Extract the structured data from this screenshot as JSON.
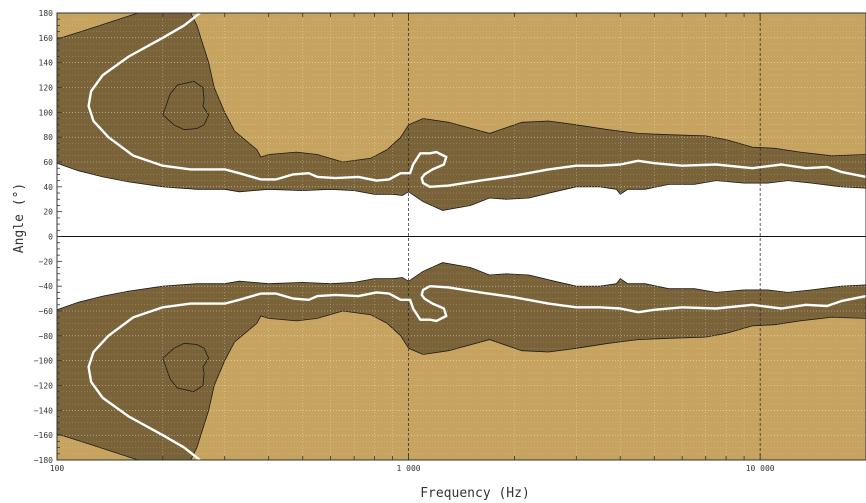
{
  "chart_data": {
    "type": "contour",
    "title": "",
    "xlabel": "Frequency (Hz)",
    "ylabel": "Angle (°)",
    "x_scale": "log",
    "xlim": [
      100,
      20000
    ],
    "ylim": [
      -180,
      180
    ],
    "x_tick_labels": [
      {
        "value": 100,
        "label": "100"
      },
      {
        "value": 1000,
        "label": "1 000"
      },
      {
        "value": 10000,
        "label": "10 000"
      }
    ],
    "y_tick_labels": [
      {
        "value": 180,
        "label": "180"
      },
      {
        "value": 160,
        "label": "160"
      },
      {
        "value": 140,
        "label": "140"
      },
      {
        "value": 120,
        "label": "120"
      },
      {
        "value": 100,
        "label": "100"
      },
      {
        "value": 80,
        "label": "80"
      },
      {
        "value": 60,
        "label": "60"
      },
      {
        "value": 40,
        "label": "40"
      },
      {
        "value": 20,
        "label": "20"
      },
      {
        "value": 0,
        "label": "0"
      },
      {
        "value": -20,
        "label": "−20"
      },
      {
        "value": -40,
        "label": "−40"
      },
      {
        "value": -60,
        "label": "−60"
      },
      {
        "value": -80,
        "label": "−80"
      },
      {
        "value": -100,
        "label": "−100"
      },
      {
        "value": -120,
        "label": "−120"
      },
      {
        "value": -140,
        "label": "−140"
      },
      {
        "value": -160,
        "label": "−160"
      },
      {
        "value": -180,
        "label": "−180"
      }
    ],
    "grid": true,
    "colors": {
      "light_band": "#c6a35e",
      "dark_band": "#7a6339",
      "white_contour": "#ffffff",
      "background": "#ffffff"
    },
    "regions": {
      "light_upper_boundary": [
        [
          100,
          59
        ],
        [
          115,
          53
        ],
        [
          135,
          48
        ],
        [
          160,
          44
        ],
        [
          200,
          40
        ],
        [
          250,
          38
        ],
        [
          300,
          38
        ],
        [
          330,
          36
        ],
        [
          400,
          38
        ],
        [
          500,
          37
        ],
        [
          600,
          38
        ],
        [
          700,
          37
        ],
        [
          800,
          34
        ],
        [
          900,
          34
        ],
        [
          960,
          33
        ],
        [
          1000,
          36
        ],
        [
          1100,
          28
        ],
        [
          1250,
          21
        ],
        [
          1500,
          25
        ],
        [
          1700,
          31
        ],
        [
          1900,
          30
        ],
        [
          2200,
          31
        ],
        [
          2600,
          36
        ],
        [
          3000,
          40
        ],
        [
          3500,
          40
        ],
        [
          3900,
          38
        ],
        [
          4000,
          34
        ],
        [
          4200,
          38
        ],
        [
          4700,
          38
        ],
        [
          5500,
          42
        ],
        [
          6500,
          42
        ],
        [
          7500,
          45
        ],
        [
          9000,
          43
        ],
        [
          10500,
          43
        ],
        [
          12000,
          45
        ],
        [
          14000,
          43
        ],
        [
          17000,
          40
        ],
        [
          20000,
          39
        ]
      ],
      "dark_upper_boundary": [
        [
          100,
          159
        ],
        [
          120,
          166
        ],
        [
          150,
          175
        ],
        [
          170,
          180
        ],
        [
          240,
          180
        ],
        [
          250,
          170
        ],
        [
          270,
          140
        ],
        [
          280,
          120
        ],
        [
          300,
          100
        ],
        [
          320,
          85
        ],
        [
          370,
          70
        ],
        [
          380,
          64
        ],
        [
          400,
          66
        ],
        [
          480,
          68
        ],
        [
          550,
          66
        ],
        [
          650,
          60
        ],
        [
          780,
          63
        ],
        [
          870,
          70
        ],
        [
          950,
          80
        ],
        [
          1000,
          90
        ],
        [
          1100,
          95
        ],
        [
          1300,
          92
        ],
        [
          1700,
          83
        ],
        [
          2100,
          92
        ],
        [
          2500,
          93
        ],
        [
          3000,
          90
        ],
        [
          3700,
          86
        ],
        [
          4500,
          83
        ],
        [
          5500,
          82
        ],
        [
          7000,
          81
        ],
        [
          8000,
          78
        ],
        [
          9500,
          72
        ],
        [
          11000,
          71
        ],
        [
          13000,
          68
        ],
        [
          16000,
          65
        ],
        [
          20000,
          66
        ]
      ],
      "dark_island": [
        [
          200,
          98
        ],
        [
          210,
          115
        ],
        [
          220,
          122
        ],
        [
          245,
          125
        ],
        [
          260,
          120
        ],
        [
          262,
          110
        ],
        [
          260,
          105
        ],
        [
          270,
          98
        ],
        [
          262,
          90
        ],
        [
          250,
          87
        ],
        [
          230,
          86
        ],
        [
          215,
          90
        ]
      ],
      "white_contour_upper": [
        [
          255,
          180
        ],
        [
          230,
          170
        ],
        [
          200,
          160
        ],
        [
          160,
          145
        ],
        [
          135,
          130
        ],
        [
          125,
          117
        ],
        [
          123,
          105
        ],
        [
          127,
          93
        ],
        [
          140,
          80
        ],
        [
          165,
          65
        ],
        [
          200,
          57
        ],
        [
          240,
          54
        ],
        [
          300,
          54
        ],
        [
          330,
          51
        ],
        [
          380,
          46
        ],
        [
          420,
          46
        ],
        [
          470,
          50
        ],
        [
          520,
          51
        ],
        [
          550,
          48
        ],
        [
          620,
          47
        ],
        [
          720,
          48
        ],
        [
          810,
          45
        ],
        [
          880,
          46
        ],
        [
          950,
          51
        ],
        [
          1010,
          51
        ],
        [
          1030,
          58
        ],
        [
          1080,
          67
        ],
        [
          1150,
          67
        ],
        [
          1200,
          68
        ],
        [
          1280,
          64
        ],
        [
          1260,
          58
        ],
        [
          1170,
          54
        ],
        [
          1110,
          50
        ],
        [
          1090,
          47
        ],
        [
          1100,
          43
        ],
        [
          1150,
          40
        ],
        [
          1300,
          41
        ],
        [
          1600,
          45
        ],
        [
          2000,
          49
        ],
        [
          2500,
          54
        ],
        [
          3000,
          57
        ],
        [
          3500,
          57
        ],
        [
          4000,
          58
        ],
        [
          4500,
          61
        ],
        [
          5000,
          59
        ],
        [
          6000,
          57
        ],
        [
          7500,
          58
        ],
        [
          9500,
          55
        ],
        [
          11500,
          58
        ],
        [
          13500,
          55
        ],
        [
          15500,
          56
        ],
        [
          17000,
          52
        ],
        [
          20000,
          48
        ]
      ]
    }
  }
}
